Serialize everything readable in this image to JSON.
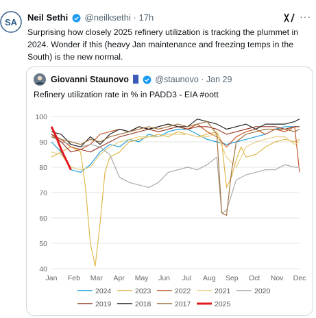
{
  "tweet": {
    "author_name": "Neil Sethi",
    "handle": "@neilksethi",
    "separator": "·",
    "time": "17h",
    "text": "Surprising how closely 2025 refinery utilization is tracking the plummet in 2024.  Wonder if this (heavy Jan maintenance and freezing temps in the South) is the new normal.",
    "more_label": "···",
    "icons": {
      "verified": "verified-badge-icon",
      "grok": "grok-icon",
      "more": "more-icon"
    }
  },
  "quote": {
    "author_name": "Giovanni Staunovo",
    "handle": "@staunovo",
    "separator": "·",
    "date": "Jan 29",
    "text": "Refinery utilization rate in % in PADD3 - EIA #oott"
  },
  "colors": {
    "2024": "#1f9fd8",
    "2023": "#e0b84a",
    "2022": "#c4582c",
    "2021": "#e8cf86",
    "2020": "#a9a9a9",
    "2019": "#9b3b28",
    "2018": "#222222",
    "2017": "#a0713a",
    "2025": "#e31a1c"
  },
  "chart_data": {
    "type": "line",
    "title": "",
    "xlabel": "",
    "ylabel": "",
    "x_categories": [
      "Jan",
      "Feb",
      "Mar",
      "Apr",
      "May",
      "Jun",
      "Jul",
      "Aug",
      "Sep",
      "Oct",
      "Nov",
      "Dec"
    ],
    "ylim": [
      40,
      100
    ],
    "yticks": [
      40,
      50,
      60,
      70,
      80,
      90,
      100
    ],
    "grid": "horizontal",
    "legend_position": "bottom",
    "x_unit": "week of year",
    "series": [
      {
        "name": "2024",
        "color": "#1f9fd8",
        "x": [
          1,
          3,
          5,
          7,
          9,
          11,
          13,
          15,
          17,
          19,
          21,
          23,
          25,
          27,
          29,
          31,
          33,
          35,
          37,
          39,
          41,
          43,
          45,
          47,
          49,
          51,
          52
        ],
        "values": [
          90,
          86,
          79,
          78,
          81,
          86,
          89,
          88,
          91,
          90,
          93,
          92,
          94,
          95,
          95,
          93,
          91,
          90,
          89,
          90,
          91,
          92,
          93,
          95,
          96,
          96,
          96
        ]
      },
      {
        "name": "2023",
        "color": "#e0b84a",
        "x": [
          1,
          3,
          5,
          7,
          8,
          9,
          10,
          11,
          12,
          13,
          15,
          17,
          19,
          21,
          23,
          25,
          27,
          29,
          31,
          33,
          35,
          36,
          37,
          38,
          39,
          40,
          41,
          43,
          45,
          47,
          49,
          51,
          52
        ],
        "values": [
          84,
          86,
          88,
          86,
          72,
          50,
          41,
          58,
          78,
          84,
          86,
          90,
          91,
          92,
          93,
          92,
          94,
          93,
          92,
          93,
          94,
          90,
          72,
          76,
          83,
          88,
          84,
          85,
          88,
          90,
          91,
          90,
          91
        ]
      },
      {
        "name": "2022",
        "color": "#c4582c",
        "x": [
          1,
          3,
          5,
          7,
          9,
          11,
          13,
          15,
          17,
          19,
          21,
          23,
          25,
          27,
          29,
          31,
          33,
          35,
          37,
          39,
          41,
          43,
          45,
          47,
          49,
          51,
          52
        ],
        "values": [
          93,
          91,
          88,
          87,
          89,
          93,
          94,
          95,
          94,
          96,
          95,
          96,
          97,
          96,
          95,
          97,
          94,
          92,
          88,
          92,
          94,
          95,
          93,
          95,
          94,
          96,
          78
        ]
      },
      {
        "name": "2021",
        "color": "#e8cf86",
        "x": [
          1,
          3,
          5,
          7,
          9,
          11,
          13,
          15,
          17,
          19,
          21,
          23,
          25,
          27,
          29,
          31,
          33,
          35,
          37,
          39,
          41,
          43,
          45,
          47,
          49,
          51,
          52
        ],
        "values": [
          86,
          85,
          80,
          79,
          80,
          85,
          88,
          90,
          91,
          92,
          92,
          92,
          93,
          93,
          93,
          92,
          92,
          93,
          84,
          80,
          88,
          90,
          91,
          92,
          92,
          89,
          90
        ]
      },
      {
        "name": "2020",
        "color": "#a9a9a9",
        "x": [
          1,
          3,
          5,
          7,
          9,
          11,
          13,
          15,
          17,
          19,
          21,
          23,
          25,
          27,
          29,
          31,
          33,
          35,
          36,
          37,
          39,
          41,
          43,
          45,
          47,
          49,
          51,
          52
        ],
        "values": [
          92,
          90,
          89,
          88,
          89,
          88,
          85,
          76,
          74,
          73,
          72,
          74,
          78,
          79,
          80,
          79,
          81,
          84,
          62,
          63,
          75,
          77,
          78,
          79,
          79,
          81,
          80,
          80
        ]
      },
      {
        "name": "2019",
        "color": "#9b3b28",
        "x": [
          1,
          3,
          5,
          7,
          9,
          11,
          13,
          15,
          17,
          19,
          21,
          23,
          25,
          27,
          29,
          31,
          33,
          35,
          37,
          39,
          41,
          43,
          45,
          47,
          49,
          51,
          52
        ],
        "values": [
          93,
          90,
          86,
          87,
          86,
          88,
          90,
          92,
          93,
          94,
          95,
          94,
          95,
          96,
          95,
          96,
          96,
          95,
          93,
          94,
          95,
          96,
          96,
          96,
          95,
          96,
          96
        ]
      },
      {
        "name": "2018",
        "color": "#222222",
        "x": [
          1,
          3,
          5,
          7,
          9,
          11,
          13,
          15,
          17,
          19,
          21,
          23,
          25,
          27,
          29,
          31,
          33,
          35,
          37,
          39,
          41,
          43,
          45,
          47,
          49,
          51,
          52
        ],
        "values": [
          94,
          93,
          89,
          88,
          92,
          89,
          93,
          95,
          94,
          96,
          95,
          96,
          97,
          96,
          96,
          99,
          98,
          97,
          95,
          96,
          97,
          95,
          97,
          97,
          97,
          98,
          99
        ]
      },
      {
        "name": "2017",
        "color": "#a0713a",
        "x": [
          1,
          3,
          5,
          7,
          9,
          11,
          13,
          15,
          17,
          19,
          21,
          23,
          25,
          27,
          29,
          31,
          33,
          35,
          36,
          37,
          38,
          39,
          41,
          43,
          45,
          47,
          49,
          51,
          52
        ],
        "values": [
          92,
          91,
          90,
          89,
          91,
          90,
          92,
          93,
          94,
          95,
          96,
          95,
          96,
          97,
          96,
          97,
          98,
          93,
          62,
          61,
          78,
          90,
          93,
          94,
          95,
          95,
          95,
          94,
          95
        ]
      },
      {
        "name": "2025",
        "color": "#e31a1c",
        "x": [
          1,
          2,
          3,
          4,
          5
        ],
        "values": [
          96,
          92,
          87,
          83,
          79
        ]
      }
    ]
  }
}
